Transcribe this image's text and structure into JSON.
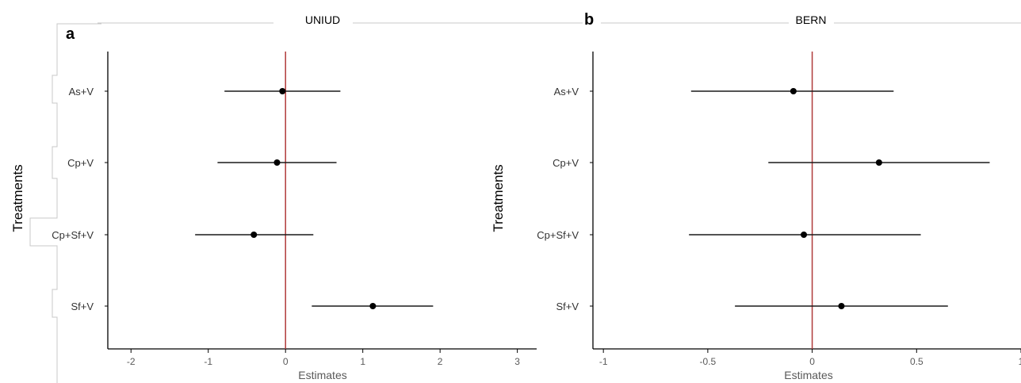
{
  "chart_data": [
    {
      "type": "forest",
      "panel_label": "a",
      "title": "UNIUD",
      "xlabel": "Estimates",
      "ylabel": "Treatments",
      "xlim": [
        -2.3,
        3.25
      ],
      "xticks": [
        -2,
        -1,
        0,
        1,
        2,
        3
      ],
      "xtick_labels": [
        "-2",
        "-1",
        "0",
        "1",
        "2",
        "3"
      ],
      "reference_line": 0,
      "reference_color": "#b03a3a",
      "points": [
        {
          "label": "As+V",
          "estimate": -0.04,
          "low": -0.79,
          "high": 0.71
        },
        {
          "label": "Cp+V",
          "estimate": -0.11,
          "low": -0.88,
          "high": 0.66
        },
        {
          "label": "Cp+Sf+V",
          "estimate": -0.41,
          "low": -1.17,
          "high": 0.36
        },
        {
          "label": "Sf+V",
          "estimate": 1.13,
          "low": 0.34,
          "high": 1.91
        }
      ]
    },
    {
      "type": "forest",
      "panel_label": "b",
      "title": "BERN",
      "xlabel": "Estimates",
      "ylabel": "Treatments",
      "xlim": [
        -1.05,
        1.0
      ],
      "xticks": [
        -1,
        -0.5,
        0,
        0.5,
        1
      ],
      "xtick_labels": [
        "-1",
        "-0.5",
        "0",
        "0.5",
        "1"
      ],
      "reference_line": 0,
      "reference_color": "#b03a3a",
      "points": [
        {
          "label": "As+V",
          "estimate": -0.09,
          "low": -0.58,
          "high": 0.39
        },
        {
          "label": "Cp+V",
          "estimate": 0.32,
          "low": -0.21,
          "high": 0.85
        },
        {
          "label": "Cp+Sf+V",
          "estimate": -0.04,
          "low": -0.59,
          "high": 0.52
        },
        {
          "label": "Sf+V",
          "estimate": 0.14,
          "low": -0.37,
          "high": 0.65
        }
      ]
    }
  ]
}
